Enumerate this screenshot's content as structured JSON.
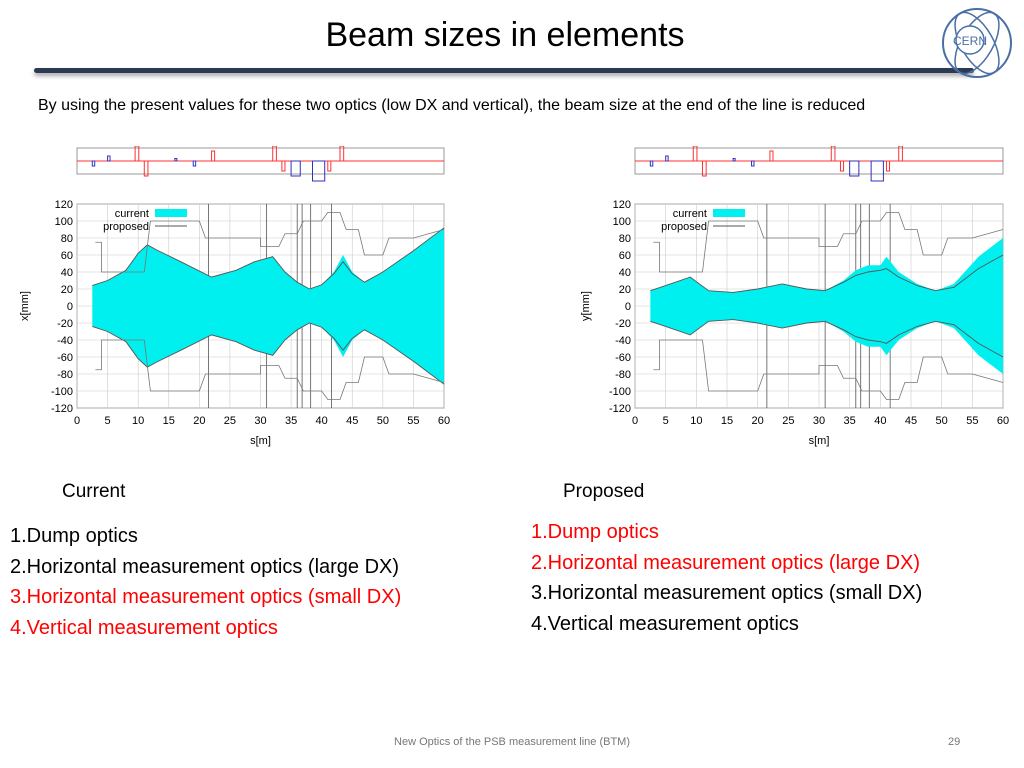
{
  "slide": {
    "title": "Beam sizes in elements",
    "intro": "By using the present values for these two optics (low DX and vertical), the beam size at the end of the line is reduced",
    "logo_text": "CERN",
    "footer_text": "New Optics of the PSB measurement line (BTM)",
    "page_number": "29"
  },
  "columns": {
    "left": {
      "heading": "Current",
      "items": [
        {
          "text": "1.Dump optics",
          "color": "#000000"
        },
        {
          "text": "2.Horizontal measurement optics (large DX)",
          "color": "#000000"
        },
        {
          "text": "3.Horizontal measurement optics (small DX)",
          "color": "#ff0000"
        },
        {
          "text": "4.Vertical measurement optics",
          "color": "#ff0000"
        }
      ]
    },
    "right": {
      "heading": "Proposed",
      "items": [
        {
          "text": "1.Dump optics",
          "color": "#ff0000"
        },
        {
          "text": "2.Horizontal measurement optics (large DX)",
          "color": "#ff0000"
        },
        {
          "text": "3.Horizontal measurement optics (small DX)",
          "color": "#000000"
        },
        {
          "text": "4.Vertical measurement optics",
          "color": "#000000"
        }
      ]
    }
  },
  "chart_data": [
    {
      "type": "area",
      "xlabel": "s[m]",
      "ylabel": "x[mm]",
      "xlim": [
        0,
        60
      ],
      "ylim": [
        -120,
        120
      ],
      "xticks": [
        0,
        5,
        10,
        15,
        20,
        25,
        30,
        35,
        40,
        45,
        50,
        55,
        60
      ],
      "yticks": [
        120,
        100,
        80,
        60,
        40,
        20,
        0,
        -20,
        -40,
        -60,
        -80,
        -100,
        -120
      ],
      "legend": [
        "current",
        "proposed"
      ],
      "legend_position": "top-left",
      "colors": {
        "current": "#00f0f0",
        "proposed": "#555555",
        "aperture": "#777777"
      },
      "series": [
        {
          "name": "current",
          "x": [
            2.5,
            5,
            8,
            10,
            11.5,
            13,
            17,
            22,
            26,
            29,
            32,
            34,
            36,
            38,
            40,
            42,
            43.5,
            45,
            47,
            50,
            55,
            60
          ],
          "values": [
            24,
            30,
            42,
            62,
            72,
            66,
            52,
            34,
            42,
            52,
            58,
            40,
            28,
            20,
            25,
            40,
            60,
            40,
            28,
            40,
            65,
            92
          ]
        },
        {
          "name": "proposed",
          "x": [
            2.5,
            5,
            8,
            10,
            11.5,
            13,
            17,
            22,
            26,
            29,
            32,
            34,
            36,
            38,
            40,
            42,
            43.5,
            45,
            47,
            50,
            55,
            60
          ],
          "values": [
            24,
            30,
            42,
            62,
            72,
            66,
            52,
            34,
            42,
            52,
            58,
            40,
            28,
            20,
            25,
            38,
            52,
            38,
            28,
            40,
            65,
            92
          ]
        }
      ]
    },
    {
      "type": "area",
      "xlabel": "s[m]",
      "ylabel": "y[mm]",
      "xlim": [
        0,
        60
      ],
      "ylim": [
        -120,
        120
      ],
      "xticks": [
        0,
        5,
        10,
        15,
        20,
        25,
        30,
        35,
        40,
        45,
        50,
        55,
        60
      ],
      "yticks": [
        120,
        100,
        80,
        60,
        40,
        20,
        0,
        -20,
        -40,
        -60,
        -80,
        -100,
        -120
      ],
      "legend": [
        "current",
        "proposed"
      ],
      "legend_position": "top-left",
      "colors": {
        "current": "#00f0f0",
        "proposed": "#555555",
        "aperture": "#777777"
      },
      "series": [
        {
          "name": "current",
          "x": [
            2.5,
            5,
            9,
            12,
            16,
            20,
            24,
            28,
            31,
            34,
            36,
            38,
            40,
            41,
            43,
            46,
            49,
            52,
            56,
            60
          ],
          "values": [
            18,
            24,
            34,
            18,
            16,
            20,
            26,
            20,
            18,
            30,
            42,
            48,
            48,
            58,
            40,
            26,
            18,
            26,
            58,
            80
          ]
        },
        {
          "name": "proposed",
          "x": [
            2.5,
            5,
            9,
            12,
            16,
            20,
            24,
            28,
            31,
            34,
            36,
            38,
            40,
            41,
            43,
            46,
            49,
            52,
            56,
            60
          ],
          "values": [
            18,
            24,
            34,
            18,
            16,
            20,
            26,
            20,
            18,
            28,
            36,
            40,
            42,
            44,
            34,
            24,
            18,
            22,
            44,
            60
          ]
        }
      ]
    }
  ]
}
